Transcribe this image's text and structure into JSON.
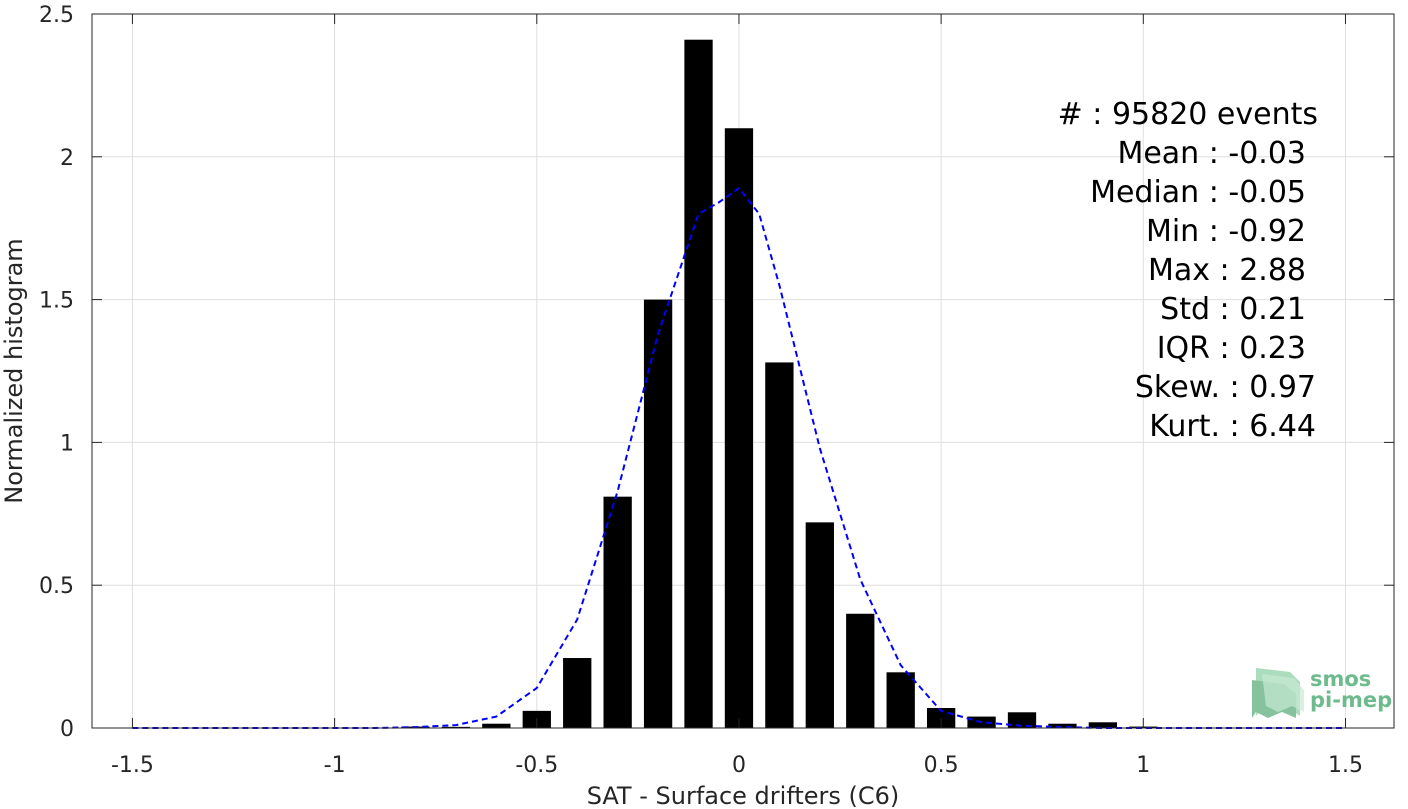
{
  "chart_data": {
    "type": "bar",
    "xlabel": "SAT - Surface drifters (C6)",
    "ylabel": "Normalized histogram",
    "xlim": [
      -1.6,
      1.62
    ],
    "ylim": [
      0,
      2.5
    ],
    "xticks": [
      -1.5,
      -1,
      -0.5,
      0,
      0.5,
      1,
      1.5
    ],
    "yticks": [
      0,
      0.5,
      1,
      1.5,
      2,
      2.5
    ],
    "grid": true,
    "bar_width": 0.07,
    "bars": {
      "x": [
        -0.8,
        -0.7,
        -0.6,
        -0.5,
        -0.4,
        -0.3,
        -0.2,
        -0.1,
        0.0,
        0.1,
        0.2,
        0.3,
        0.4,
        0.5,
        0.6,
        0.7,
        0.8,
        0.9,
        1.0
      ],
      "values": [
        0.005,
        0.004,
        0.015,
        0.06,
        0.245,
        0.81,
        1.5,
        2.41,
        2.1,
        1.28,
        0.72,
        0.4,
        0.195,
        0.07,
        0.04,
        0.055,
        0.015,
        0.02,
        0.005
      ]
    },
    "fit_curve": {
      "color": "#0000ff",
      "style": "dashed",
      "x": [
        -1.5,
        -1.4,
        -1.3,
        -1.2,
        -1.1,
        -1.0,
        -0.9,
        -0.8,
        -0.7,
        -0.6,
        -0.5,
        -0.4,
        -0.3,
        -0.2,
        -0.1,
        -0.05,
        0.0,
        0.05,
        0.1,
        0.2,
        0.3,
        0.4,
        0.5,
        0.6,
        0.7,
        0.8,
        0.9,
        1.0,
        1.1,
        1.2,
        1.3,
        1.4,
        1.5
      ],
      "y": [
        0,
        0,
        0,
        0,
        0,
        0,
        0,
        0.003,
        0.01,
        0.04,
        0.14,
        0.38,
        0.83,
        1.38,
        1.8,
        1.84,
        1.89,
        1.8,
        1.55,
        0.98,
        0.52,
        0.22,
        0.06,
        0.02,
        0.008,
        0.003,
        0,
        0,
        0,
        0,
        0,
        0,
        0
      ]
    },
    "bar_color": "#000000"
  },
  "stats": [
    {
      "text": "#  : 95820 events",
      "anchor": "end"
    },
    {
      "text": "Mean : -0.03",
      "anchor": "end"
    },
    {
      "text": "Median : -0.05",
      "anchor": "end"
    },
    {
      "text": "Min : -0.92",
      "anchor": "end"
    },
    {
      "text": "Max : 2.88",
      "anchor": "end"
    },
    {
      "text": "Std : 0.21",
      "anchor": "end"
    },
    {
      "text": "IQR : 0.23",
      "anchor": "end"
    },
    {
      "text": "Skew. : 0.97",
      "anchor": "end"
    },
    {
      "text": "Kurt. : 6.44",
      "anchor": "end"
    }
  ],
  "logo": {
    "line1": "smos",
    "line2": "pi-mep",
    "color": "#6dbb8c"
  }
}
